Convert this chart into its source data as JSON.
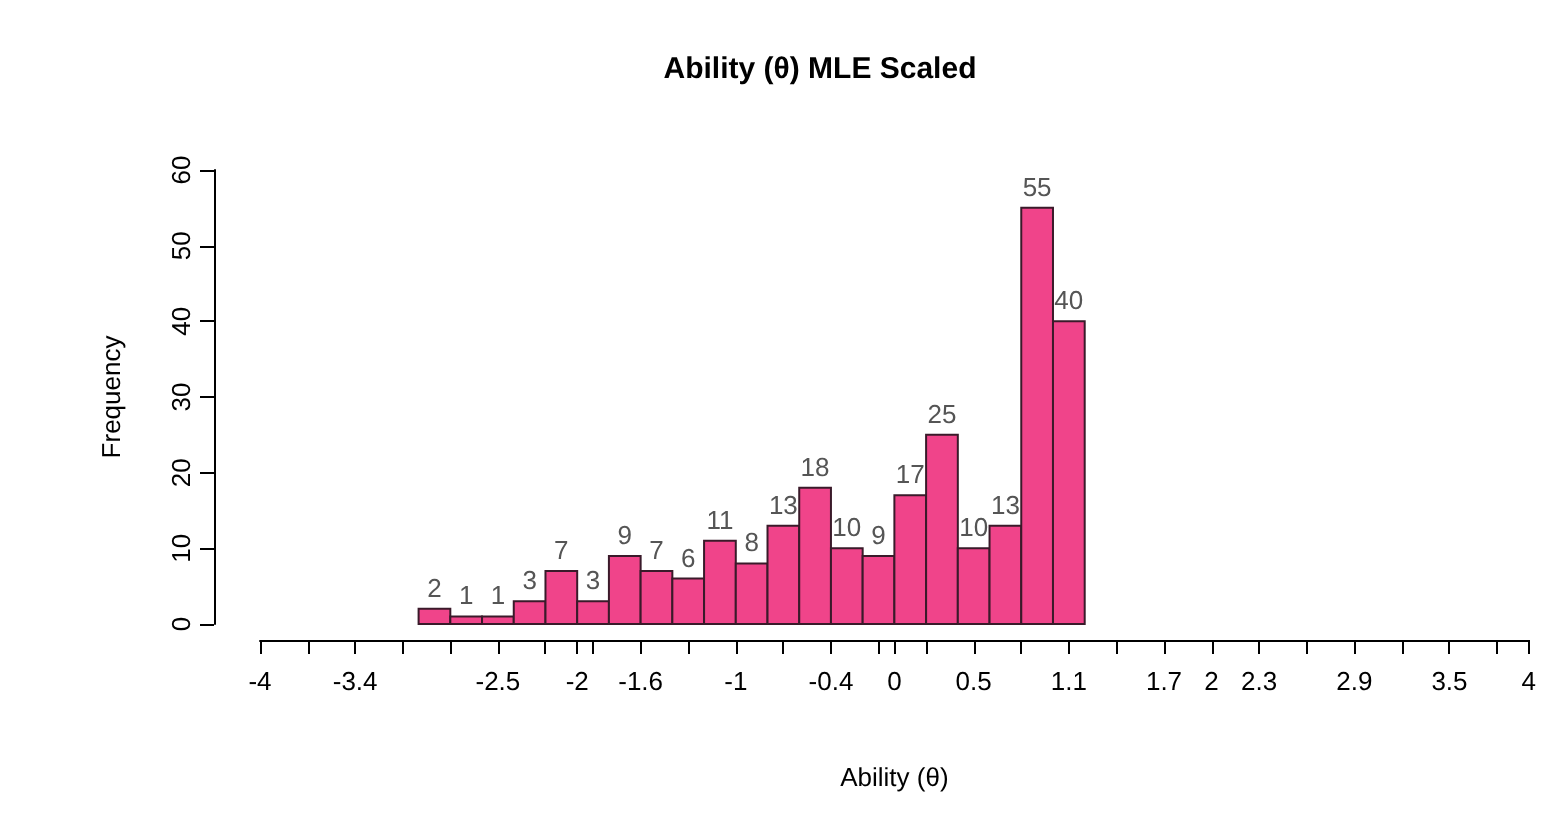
{
  "chart_data": {
    "type": "histogram",
    "title": "Ability (θ) MLE Scaled",
    "xlabel": "Ability (θ)",
    "ylabel": "Frequency",
    "bins": [
      -3,
      -2.8,
      -2.6,
      -2.4,
      -2.2,
      -2,
      -1.8,
      -1.6,
      -1.4,
      -1.2,
      -1,
      -0.8,
      -0.6,
      -0.4,
      -0.2,
      0,
      0.2,
      0.4,
      0.6,
      0.8,
      1,
      1.2
    ],
    "values": [
      2,
      1,
      1,
      3,
      7,
      3,
      9,
      7,
      6,
      11,
      8,
      13,
      18,
      10,
      9,
      17,
      25,
      10,
      13,
      55,
      40
    ],
    "color": "#f0448a",
    "data_labels": true,
    "xlim": [
      -4,
      4
    ],
    "xticks": [
      -4,
      {
        "value": -3.7,
        "label": null
      },
      -3.4,
      {
        "value": -3.1,
        "label": null
      },
      {
        "value": -2.8,
        "label": null
      },
      -2.5,
      {
        "value": -2.2,
        "label": null
      },
      -2,
      {
        "value": -1.9,
        "label": null
      },
      -1.6,
      {
        "value": -1.3,
        "label": null
      },
      -1,
      {
        "value": -0.7,
        "label": null
      },
      -0.4,
      {
        "value": -0.1,
        "label": null
      },
      0,
      {
        "value": 0.2,
        "label": null
      },
      0.5,
      {
        "value": 0.8,
        "label": null
      },
      1.1,
      {
        "value": 1.4,
        "label": null
      },
      1.7,
      2,
      2.3,
      {
        "value": 2.6,
        "label": null
      },
      2.9,
      {
        "value": 3.2,
        "label": null
      },
      3.5,
      {
        "value": 3.8,
        "label": null
      },
      4
    ],
    "ylim": [
      0,
      60
    ],
    "yticks": [
      0,
      10,
      20,
      30,
      40,
      50,
      60
    ]
  }
}
